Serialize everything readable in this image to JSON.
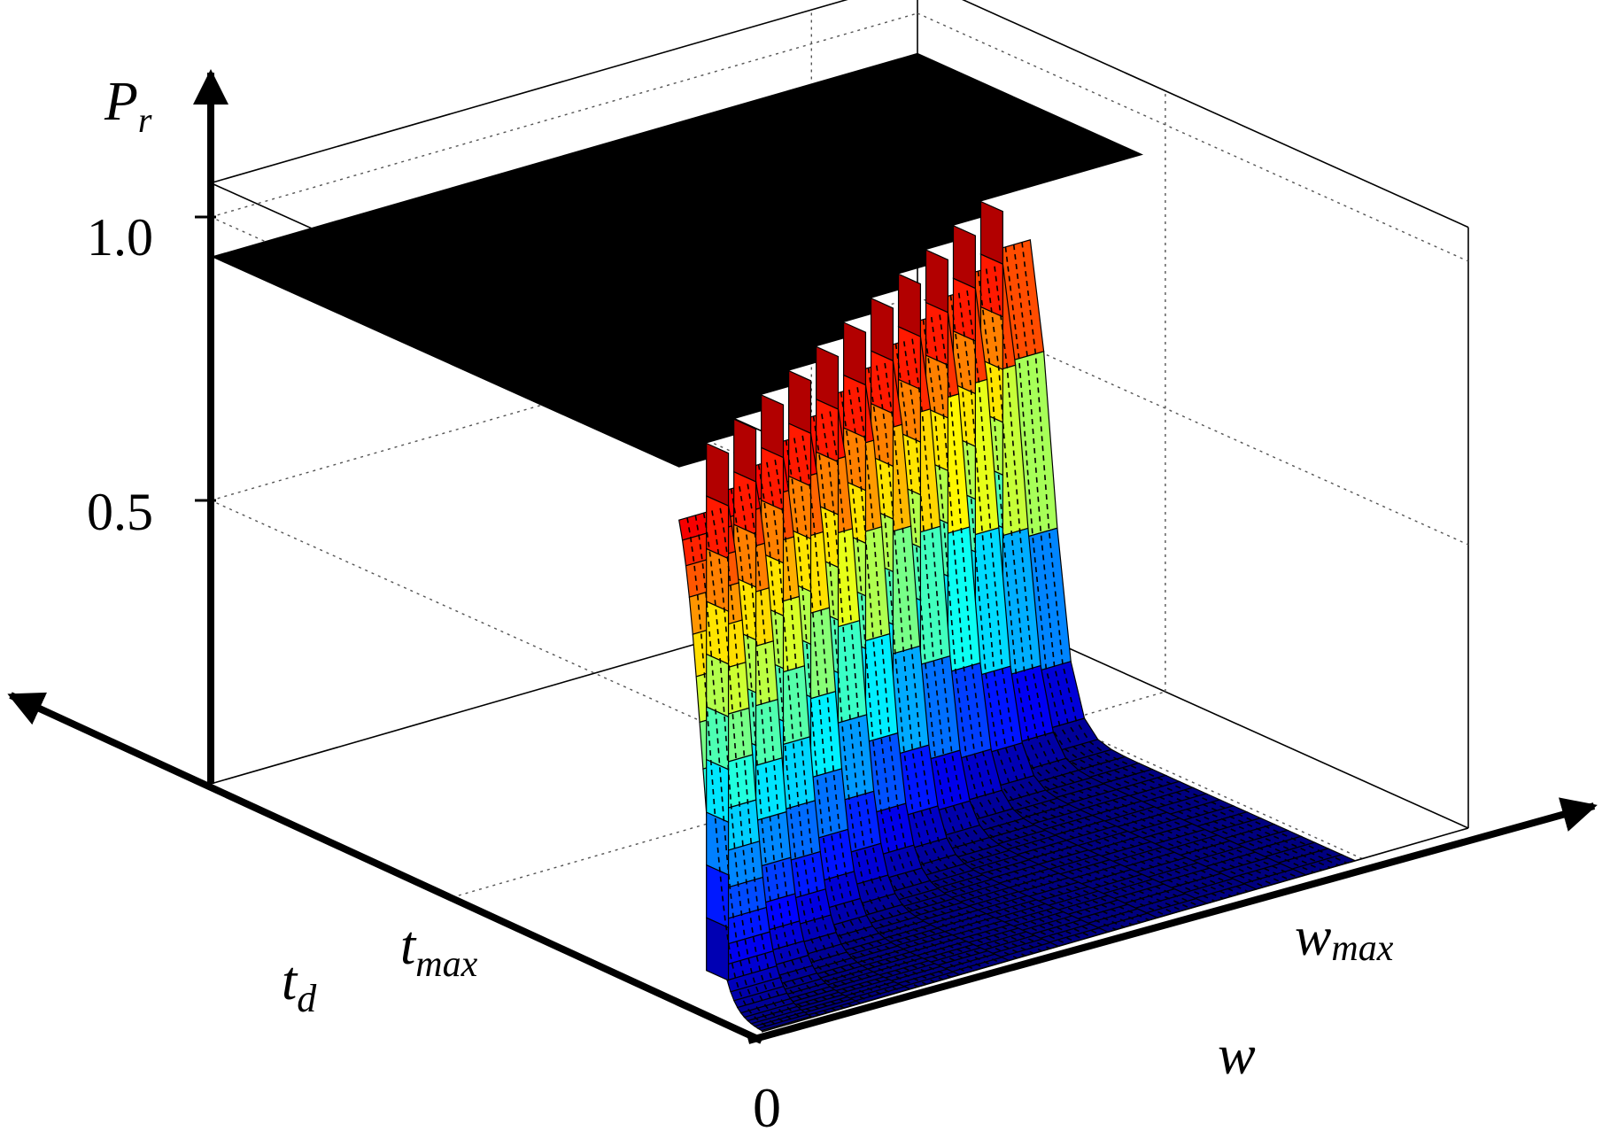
{
  "chart_data": {
    "type": "surface",
    "zlabel": "P",
    "zlabel_sub": "r",
    "xlabel": "w",
    "ylabel": "t",
    "ylabel_sub": "d",
    "z_ticks": [
      {
        "value": 1.0,
        "label": "1.0"
      },
      {
        "value": 0.5,
        "label": "0.5"
      }
    ],
    "w_ticks": [
      {
        "value": 0,
        "label": "0"
      },
      {
        "value": 0.85,
        "label": "w",
        "sub": "max"
      }
    ],
    "t_ticks": [
      {
        "value": 0.55,
        "label": "t",
        "sub": "max"
      }
    ],
    "zlim": [
      0,
      1.0
    ],
    "grid": true,
    "colormap": "jet",
    "description_values": {
      "surface_plateau": 0.93,
      "steps": 12
    },
    "series": [
      {
        "w": 0.0,
        "threshold_t": 0.11
      },
      {
        "w": 0.07,
        "threshold_t": 0.15
      },
      {
        "w": 0.14,
        "threshold_t": 0.19
      },
      {
        "w": 0.21,
        "threshold_t": 0.23
      },
      {
        "w": 0.28,
        "threshold_t": 0.27
      },
      {
        "w": 0.35,
        "threshold_t": 0.31
      },
      {
        "w": 0.42,
        "threshold_t": 0.35
      },
      {
        "w": 0.49,
        "threshold_t": 0.39
      },
      {
        "w": 0.56,
        "threshold_t": 0.43
      },
      {
        "w": 0.63,
        "threshold_t": 0.47
      },
      {
        "w": 0.7,
        "threshold_t": 0.51
      },
      {
        "w": 0.77,
        "threshold_t": 0.55
      }
    ]
  }
}
